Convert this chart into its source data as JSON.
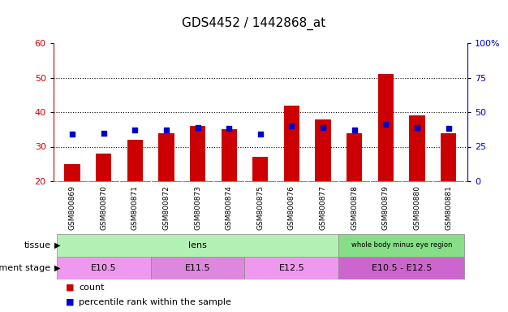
{
  "title": "GDS4452 / 1442868_at",
  "samples": [
    "GSM800869",
    "GSM800870",
    "GSM800871",
    "GSM800872",
    "GSM800873",
    "GSM800874",
    "GSM800875",
    "GSM800876",
    "GSM800877",
    "GSM800878",
    "GSM800879",
    "GSM800880",
    "GSM800881"
  ],
  "counts": [
    25,
    28,
    32,
    34,
    36,
    35,
    27,
    42,
    38,
    34,
    51,
    39,
    34
  ],
  "percentiles": [
    34,
    35,
    37,
    37,
    39,
    38,
    34,
    40,
    39,
    37,
    41,
    39,
    38
  ],
  "ylim_left": [
    20,
    60
  ],
  "ylim_right": [
    0,
    100
  ],
  "yticks_left": [
    20,
    30,
    40,
    50,
    60
  ],
  "yticks_right": [
    0,
    25,
    50,
    75,
    100
  ],
  "bar_color": "#cc0000",
  "dot_color": "#0000cc",
  "bar_width": 0.5,
  "tissue_groups": [
    {
      "label": "lens",
      "start": 0,
      "end": 9
    },
    {
      "label": "whole body minus eye region",
      "start": 9,
      "end": 13
    }
  ],
  "tissue_colors": [
    "#b3f0b3",
    "#88dd88"
  ],
  "stage_groups": [
    {
      "label": "E10.5",
      "start": 0,
      "end": 3
    },
    {
      "label": "E11.5",
      "start": 3,
      "end": 6
    },
    {
      "label": "E12.5",
      "start": 6,
      "end": 9
    },
    {
      "label": "E10.5 - E12.5",
      "start": 9,
      "end": 13
    }
  ],
  "stage_colors": [
    "#ee99ee",
    "#dd88dd",
    "#ee99ee",
    "#cc66cc"
  ],
  "legend_count_color": "#cc0000",
  "legend_dot_color": "#0000cc",
  "title_fontsize": 11,
  "axis_color_left": "#cc0000",
  "axis_color_right": "#0000cc",
  "background_color": "#ffffff",
  "xtick_bg_color": "#d0d0d0",
  "grid_color": "#000000"
}
